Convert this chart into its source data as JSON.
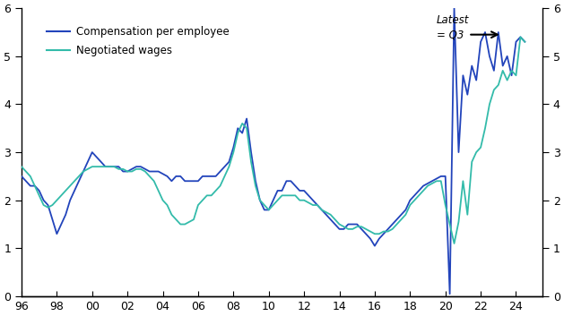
{
  "xlim": [
    1996,
    2025.5
  ],
  "ylim": [
    0,
    6
  ],
  "yticks": [
    0,
    1,
    2,
    3,
    4,
    5,
    6
  ],
  "xtick_labels": [
    "96",
    "98",
    "00",
    "02",
    "04",
    "06",
    "08",
    "10",
    "12",
    "14",
    "16",
    "18",
    "20",
    "22",
    "24"
  ],
  "xtick_values": [
    1996,
    1998,
    2000,
    2002,
    2004,
    2006,
    2008,
    2010,
    2012,
    2014,
    2016,
    2018,
    2020,
    2022,
    2024
  ],
  "line1_color": "#2244bb",
  "line2_color": "#33bbaa",
  "legend_label1": "Compensation per employee",
  "legend_label2": "Negotiated wages",
  "annotation_text": "Latest\n= Q3",
  "background_color": "#ffffff",
  "comp_per_employee": [
    [
      1996.0,
      2.5
    ],
    [
      1996.25,
      2.4
    ],
    [
      1996.5,
      2.3
    ],
    [
      1996.75,
      2.3
    ],
    [
      1997.0,
      2.2
    ],
    [
      1997.25,
      2.0
    ],
    [
      1997.5,
      1.9
    ],
    [
      1997.75,
      1.6
    ],
    [
      1998.0,
      1.3
    ],
    [
      1998.25,
      1.5
    ],
    [
      1998.5,
      1.7
    ],
    [
      1998.75,
      2.0
    ],
    [
      1999.0,
      2.2
    ],
    [
      1999.25,
      2.4
    ],
    [
      1999.5,
      2.6
    ],
    [
      1999.75,
      2.8
    ],
    [
      2000.0,
      3.0
    ],
    [
      2000.25,
      2.9
    ],
    [
      2000.5,
      2.8
    ],
    [
      2000.75,
      2.7
    ],
    [
      2001.0,
      2.7
    ],
    [
      2001.25,
      2.7
    ],
    [
      2001.5,
      2.7
    ],
    [
      2001.75,
      2.6
    ],
    [
      2002.0,
      2.6
    ],
    [
      2002.25,
      2.65
    ],
    [
      2002.5,
      2.7
    ],
    [
      2002.75,
      2.7
    ],
    [
      2003.0,
      2.65
    ],
    [
      2003.25,
      2.6
    ],
    [
      2003.5,
      2.6
    ],
    [
      2003.75,
      2.6
    ],
    [
      2004.0,
      2.55
    ],
    [
      2004.25,
      2.5
    ],
    [
      2004.5,
      2.4
    ],
    [
      2004.75,
      2.5
    ],
    [
      2005.0,
      2.5
    ],
    [
      2005.25,
      2.4
    ],
    [
      2005.5,
      2.4
    ],
    [
      2005.75,
      2.4
    ],
    [
      2006.0,
      2.4
    ],
    [
      2006.25,
      2.5
    ],
    [
      2006.5,
      2.5
    ],
    [
      2006.75,
      2.5
    ],
    [
      2007.0,
      2.5
    ],
    [
      2007.25,
      2.6
    ],
    [
      2007.5,
      2.7
    ],
    [
      2007.75,
      2.8
    ],
    [
      2008.0,
      3.1
    ],
    [
      2008.25,
      3.5
    ],
    [
      2008.5,
      3.4
    ],
    [
      2008.75,
      3.7
    ],
    [
      2009.0,
      3.0
    ],
    [
      2009.25,
      2.4
    ],
    [
      2009.5,
      2.0
    ],
    [
      2009.75,
      1.8
    ],
    [
      2010.0,
      1.8
    ],
    [
      2010.25,
      2.0
    ],
    [
      2010.5,
      2.2
    ],
    [
      2010.75,
      2.2
    ],
    [
      2011.0,
      2.4
    ],
    [
      2011.25,
      2.4
    ],
    [
      2011.5,
      2.3
    ],
    [
      2011.75,
      2.2
    ],
    [
      2012.0,
      2.2
    ],
    [
      2012.25,
      2.1
    ],
    [
      2012.5,
      2.0
    ],
    [
      2012.75,
      1.9
    ],
    [
      2013.0,
      1.8
    ],
    [
      2013.25,
      1.7
    ],
    [
      2013.5,
      1.6
    ],
    [
      2013.75,
      1.5
    ],
    [
      2014.0,
      1.4
    ],
    [
      2014.25,
      1.4
    ],
    [
      2014.5,
      1.5
    ],
    [
      2014.75,
      1.5
    ],
    [
      2015.0,
      1.5
    ],
    [
      2015.25,
      1.4
    ],
    [
      2015.5,
      1.3
    ],
    [
      2015.75,
      1.2
    ],
    [
      2016.0,
      1.05
    ],
    [
      2016.25,
      1.2
    ],
    [
      2016.5,
      1.3
    ],
    [
      2016.75,
      1.4
    ],
    [
      2017.0,
      1.5
    ],
    [
      2017.25,
      1.6
    ],
    [
      2017.5,
      1.7
    ],
    [
      2017.75,
      1.8
    ],
    [
      2018.0,
      2.0
    ],
    [
      2018.25,
      2.1
    ],
    [
      2018.5,
      2.2
    ],
    [
      2018.75,
      2.3
    ],
    [
      2019.0,
      2.35
    ],
    [
      2019.25,
      2.4
    ],
    [
      2019.5,
      2.45
    ],
    [
      2019.75,
      2.5
    ],
    [
      2020.0,
      2.5
    ],
    [
      2020.25,
      0.05
    ],
    [
      2020.5,
      6.0
    ],
    [
      2020.75,
      3.0
    ],
    [
      2021.0,
      4.6
    ],
    [
      2021.25,
      4.2
    ],
    [
      2021.5,
      4.8
    ],
    [
      2021.75,
      4.5
    ],
    [
      2022.0,
      5.3
    ],
    [
      2022.25,
      5.5
    ],
    [
      2022.5,
      5.0
    ],
    [
      2022.75,
      4.7
    ],
    [
      2023.0,
      5.5
    ],
    [
      2023.25,
      4.8
    ],
    [
      2023.5,
      5.0
    ],
    [
      2023.75,
      4.6
    ],
    [
      2024.0,
      5.3
    ],
    [
      2024.25,
      5.4
    ],
    [
      2024.5,
      5.3
    ]
  ],
  "negotiated_wages": [
    [
      1996.0,
      2.7
    ],
    [
      1996.25,
      2.6
    ],
    [
      1996.5,
      2.5
    ],
    [
      1996.75,
      2.3
    ],
    [
      1997.0,
      2.1
    ],
    [
      1997.25,
      1.9
    ],
    [
      1997.5,
      1.85
    ],
    [
      1997.75,
      1.9
    ],
    [
      1998.0,
      2.0
    ],
    [
      1998.25,
      2.1
    ],
    [
      1998.5,
      2.2
    ],
    [
      1998.75,
      2.3
    ],
    [
      1999.0,
      2.4
    ],
    [
      1999.25,
      2.5
    ],
    [
      1999.5,
      2.6
    ],
    [
      1999.75,
      2.65
    ],
    [
      2000.0,
      2.7
    ],
    [
      2000.25,
      2.7
    ],
    [
      2000.5,
      2.7
    ],
    [
      2000.75,
      2.7
    ],
    [
      2001.0,
      2.7
    ],
    [
      2001.25,
      2.7
    ],
    [
      2001.5,
      2.65
    ],
    [
      2001.75,
      2.65
    ],
    [
      2002.0,
      2.6
    ],
    [
      2002.25,
      2.6
    ],
    [
      2002.5,
      2.65
    ],
    [
      2002.75,
      2.65
    ],
    [
      2003.0,
      2.6
    ],
    [
      2003.25,
      2.5
    ],
    [
      2003.5,
      2.4
    ],
    [
      2003.75,
      2.2
    ],
    [
      2004.0,
      2.0
    ],
    [
      2004.25,
      1.9
    ],
    [
      2004.5,
      1.7
    ],
    [
      2004.75,
      1.6
    ],
    [
      2005.0,
      1.5
    ],
    [
      2005.25,
      1.5
    ],
    [
      2005.5,
      1.55
    ],
    [
      2005.75,
      1.6
    ],
    [
      2006.0,
      1.9
    ],
    [
      2006.25,
      2.0
    ],
    [
      2006.5,
      2.1
    ],
    [
      2006.75,
      2.1
    ],
    [
      2007.0,
      2.2
    ],
    [
      2007.25,
      2.3
    ],
    [
      2007.5,
      2.5
    ],
    [
      2007.75,
      2.7
    ],
    [
      2008.0,
      3.0
    ],
    [
      2008.25,
      3.4
    ],
    [
      2008.5,
      3.6
    ],
    [
      2008.75,
      3.5
    ],
    [
      2009.0,
      2.8
    ],
    [
      2009.25,
      2.3
    ],
    [
      2009.5,
      2.0
    ],
    [
      2009.75,
      1.9
    ],
    [
      2010.0,
      1.8
    ],
    [
      2010.25,
      1.9
    ],
    [
      2010.5,
      2.0
    ],
    [
      2010.75,
      2.1
    ],
    [
      2011.0,
      2.1
    ],
    [
      2011.25,
      2.1
    ],
    [
      2011.5,
      2.1
    ],
    [
      2011.75,
      2.0
    ],
    [
      2012.0,
      2.0
    ],
    [
      2012.25,
      1.95
    ],
    [
      2012.5,
      1.9
    ],
    [
      2012.75,
      1.9
    ],
    [
      2013.0,
      1.8
    ],
    [
      2013.25,
      1.75
    ],
    [
      2013.5,
      1.7
    ],
    [
      2013.75,
      1.6
    ],
    [
      2014.0,
      1.5
    ],
    [
      2014.25,
      1.45
    ],
    [
      2014.5,
      1.4
    ],
    [
      2014.75,
      1.4
    ],
    [
      2015.0,
      1.45
    ],
    [
      2015.25,
      1.45
    ],
    [
      2015.5,
      1.4
    ],
    [
      2015.75,
      1.35
    ],
    [
      2016.0,
      1.3
    ],
    [
      2016.25,
      1.3
    ],
    [
      2016.5,
      1.35
    ],
    [
      2016.75,
      1.35
    ],
    [
      2017.0,
      1.4
    ],
    [
      2017.25,
      1.5
    ],
    [
      2017.5,
      1.6
    ],
    [
      2017.75,
      1.7
    ],
    [
      2018.0,
      1.9
    ],
    [
      2018.25,
      2.0
    ],
    [
      2018.5,
      2.1
    ],
    [
      2018.75,
      2.2
    ],
    [
      2019.0,
      2.3
    ],
    [
      2019.25,
      2.35
    ],
    [
      2019.5,
      2.4
    ],
    [
      2019.75,
      2.4
    ],
    [
      2020.0,
      1.9
    ],
    [
      2020.25,
      1.5
    ],
    [
      2020.5,
      1.1
    ],
    [
      2020.75,
      1.55
    ],
    [
      2021.0,
      2.4
    ],
    [
      2021.25,
      1.7
    ],
    [
      2021.5,
      2.8
    ],
    [
      2021.75,
      3.0
    ],
    [
      2022.0,
      3.1
    ],
    [
      2022.25,
      3.5
    ],
    [
      2022.5,
      4.0
    ],
    [
      2022.75,
      4.3
    ],
    [
      2023.0,
      4.4
    ],
    [
      2023.25,
      4.7
    ],
    [
      2023.5,
      4.5
    ],
    [
      2023.75,
      4.7
    ],
    [
      2024.0,
      4.6
    ],
    [
      2024.25,
      5.4
    ],
    [
      2024.5,
      5.3
    ]
  ]
}
